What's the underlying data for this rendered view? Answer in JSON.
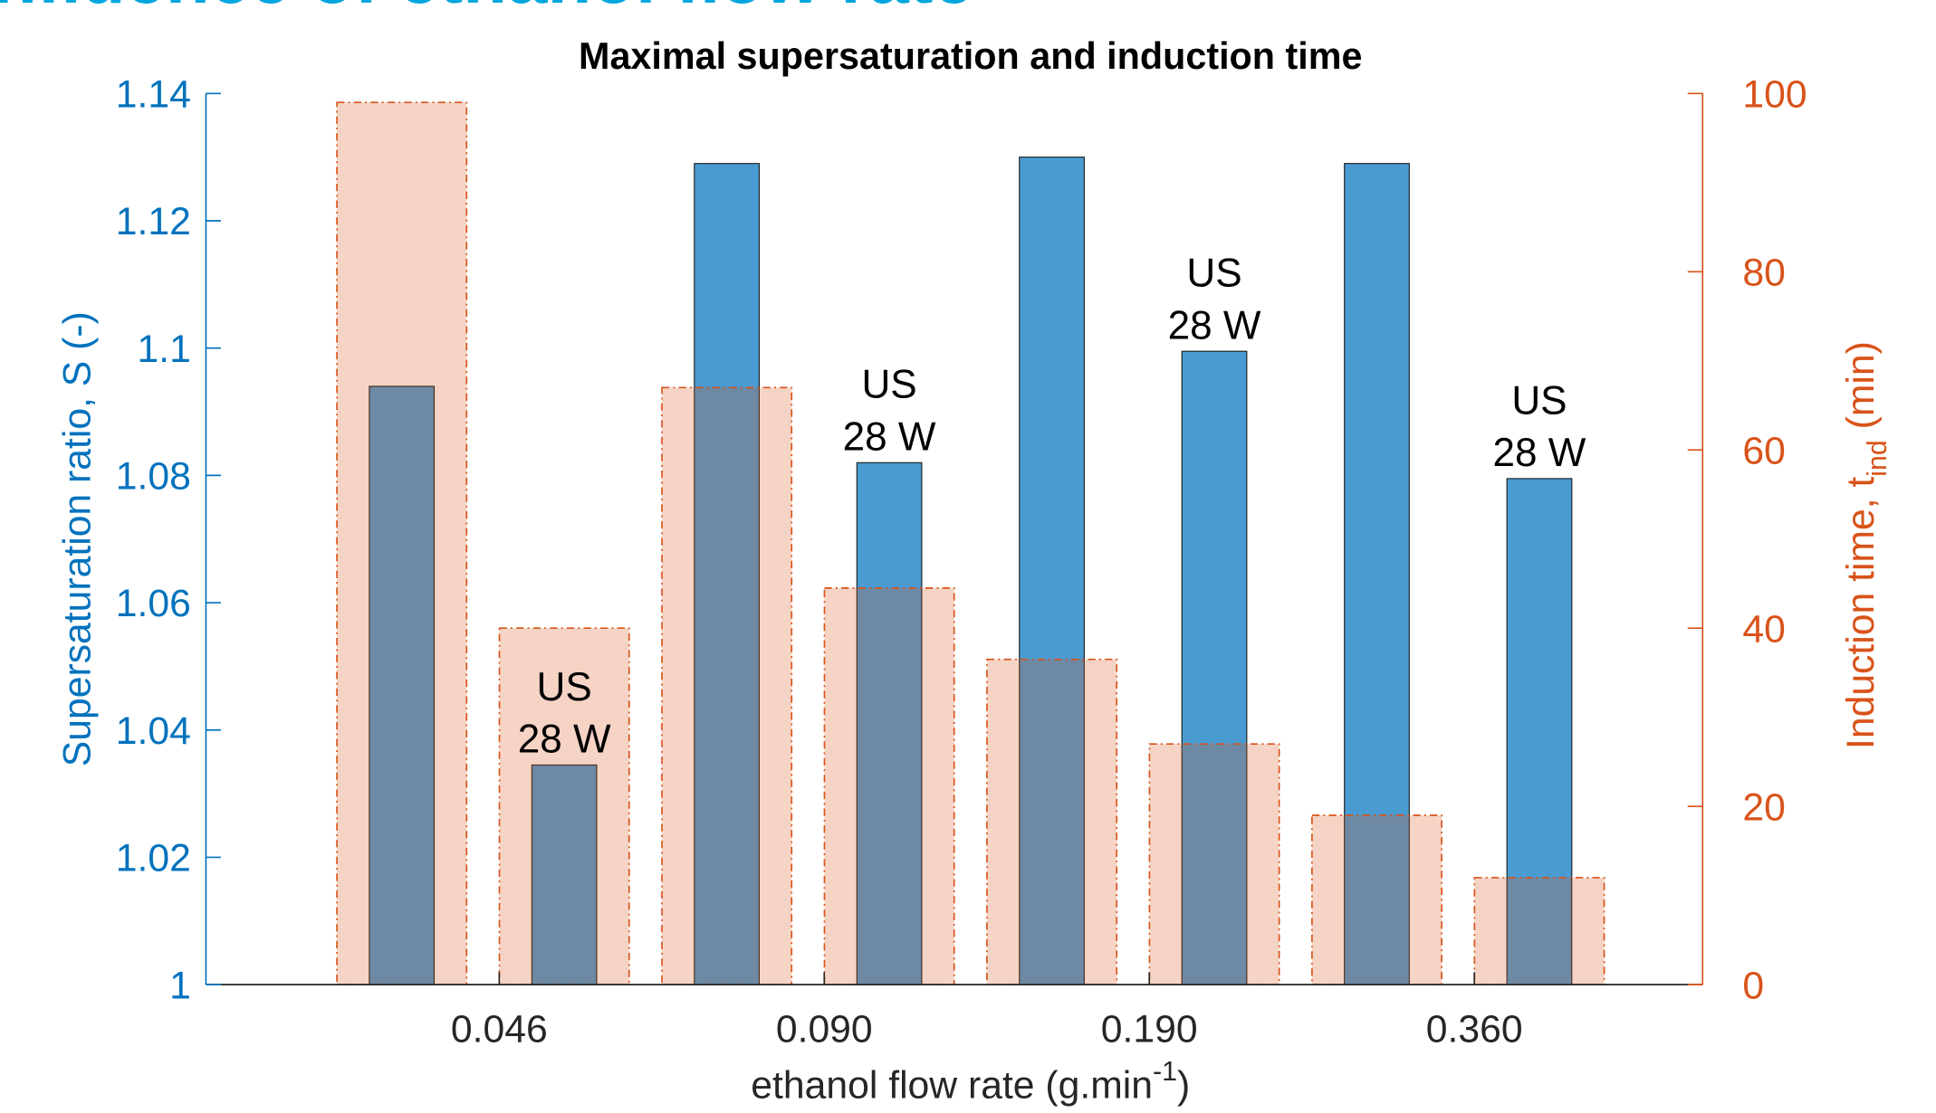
{
  "heading": "Influence of ethanol flow rate",
  "chart_data": {
    "type": "bar",
    "title": "Maximal supersaturation and induction time",
    "x_label": [
      "ethanol flow rate (g.min",
      "-1",
      ")"
    ],
    "y_label": "Supersaturation ratio, S (-)",
    "y2_label": [
      "Induction time, t",
      "ind",
      " (min)"
    ],
    "categories": [
      "0.046",
      "0.090",
      "0.190",
      "0.360"
    ],
    "annotation": [
      "US",
      "28 W"
    ],
    "ylim": [
      1,
      1.14
    ],
    "yticks": [
      1,
      1.02,
      1.04,
      1.06,
      1.08,
      1.1,
      1.12,
      1.14
    ],
    "y2lim": [
      0,
      100
    ],
    "y2ticks": [
      0,
      20,
      40,
      60,
      80,
      100
    ],
    "axis_color": "#0072bd",
    "axis2_color": "#d95319",
    "series": [
      {
        "color": "#4a9bd2",
        "values": [
          1.094,
          1.129,
          1.13,
          1.129
        ]
      },
      {
        "color": "#4a9bd2",
        "values": [
          1.0345,
          1.082,
          1.0995,
          1.0795
        ],
        "annotated": true
      },
      {
        "color": "#d95319",
        "axis": "y2",
        "values": [
          99,
          67,
          36.5,
          19
        ]
      },
      {
        "color": "#d95319",
        "axis": "y2",
        "values": [
          40,
          44.5,
          27,
          12
        ],
        "annotated": true
      }
    ]
  }
}
